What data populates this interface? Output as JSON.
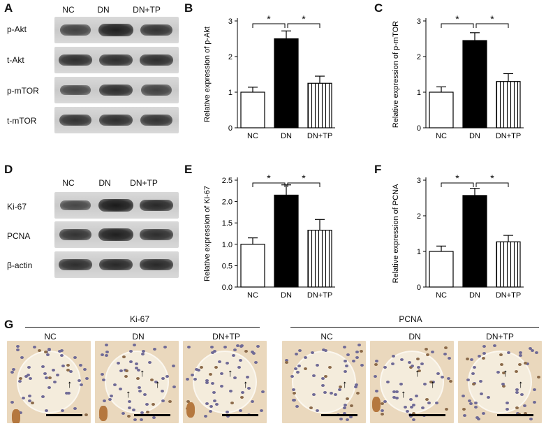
{
  "panels": {
    "A": "A",
    "B": "B",
    "C": "C",
    "D": "D",
    "E": "E",
    "F": "F",
    "G": "G"
  },
  "western_top": {
    "lanes": [
      "NC",
      "DN",
      "DN+TP"
    ],
    "bands": [
      "p-Akt",
      "t-Akt",
      "p-mTOR",
      "t-mTOR"
    ],
    "intensity": [
      [
        0.6,
        0.95,
        0.75
      ],
      [
        0.8,
        0.8,
        0.8
      ],
      [
        0.55,
        0.8,
        0.6
      ],
      [
        0.75,
        0.8,
        0.75
      ]
    ]
  },
  "western_bottom": {
    "lanes": [
      "NC",
      "DN",
      "DN+TP"
    ],
    "bands": [
      "Ki-67",
      "PCNA",
      "β-actin"
    ],
    "intensity": [
      [
        0.55,
        1.0,
        0.85
      ],
      [
        0.75,
        0.95,
        0.8
      ],
      [
        0.8,
        0.85,
        0.85
      ]
    ]
  },
  "chart_data": [
    {
      "type": "bar",
      "categories": [
        "NC",
        "DN",
        "DN+TP"
      ],
      "values": [
        1.0,
        2.5,
        1.25
      ],
      "errors": [
        0.14,
        0.22,
        0.2
      ],
      "ylabel": "Relative  expression of p-Akt",
      "ylim": [
        0,
        3
      ],
      "yticks": [
        "0",
        "1",
        "2",
        "3"
      ],
      "significance": [
        "*",
        "*"
      ]
    },
    {
      "type": "bar",
      "categories": [
        "NC",
        "DN",
        "DN+TP"
      ],
      "values": [
        1.0,
        2.45,
        1.3
      ],
      "errors": [
        0.15,
        0.22,
        0.22
      ],
      "ylabel": "Relative  expression of p-mTOR",
      "ylim": [
        0,
        3
      ],
      "yticks": [
        "0",
        "1",
        "2",
        "3"
      ],
      "significance": [
        "*",
        "*"
      ]
    },
    {
      "type": "bar",
      "categories": [
        "NC",
        "DN",
        "DN+TP"
      ],
      "values": [
        1.0,
        2.15,
        1.33
      ],
      "errors": [
        0.15,
        0.24,
        0.25
      ],
      "ylabel": "Relative  expression of Ki-67",
      "ylim": [
        0,
        2.5
      ],
      "yticks": [
        "0.0",
        "0.5",
        "1.0",
        "1.5",
        "2.0",
        "2.5"
      ],
      "significance": [
        "*",
        "*"
      ]
    },
    {
      "type": "bar",
      "categories": [
        "NC",
        "DN",
        "DN+TP"
      ],
      "values": [
        1.0,
        2.57,
        1.27
      ],
      "errors": [
        0.15,
        0.2,
        0.18
      ],
      "ylabel": "Relative  expression of PCNA",
      "ylim": [
        0,
        3
      ],
      "yticks": [
        "0",
        "1",
        "2",
        "3"
      ],
      "significance": [
        "*",
        "*"
      ]
    }
  ],
  "histology": {
    "groups": [
      {
        "title": "Ki-67",
        "labels": [
          "NC",
          "DN",
          "DN+TP"
        ]
      },
      {
        "title": "PCNA",
        "labels": [
          "NC",
          "DN",
          "DN+TP"
        ]
      }
    ]
  },
  "colors": {
    "nc": "#ffffff",
    "dn": "#000000",
    "tp_hatch": "#000000"
  }
}
